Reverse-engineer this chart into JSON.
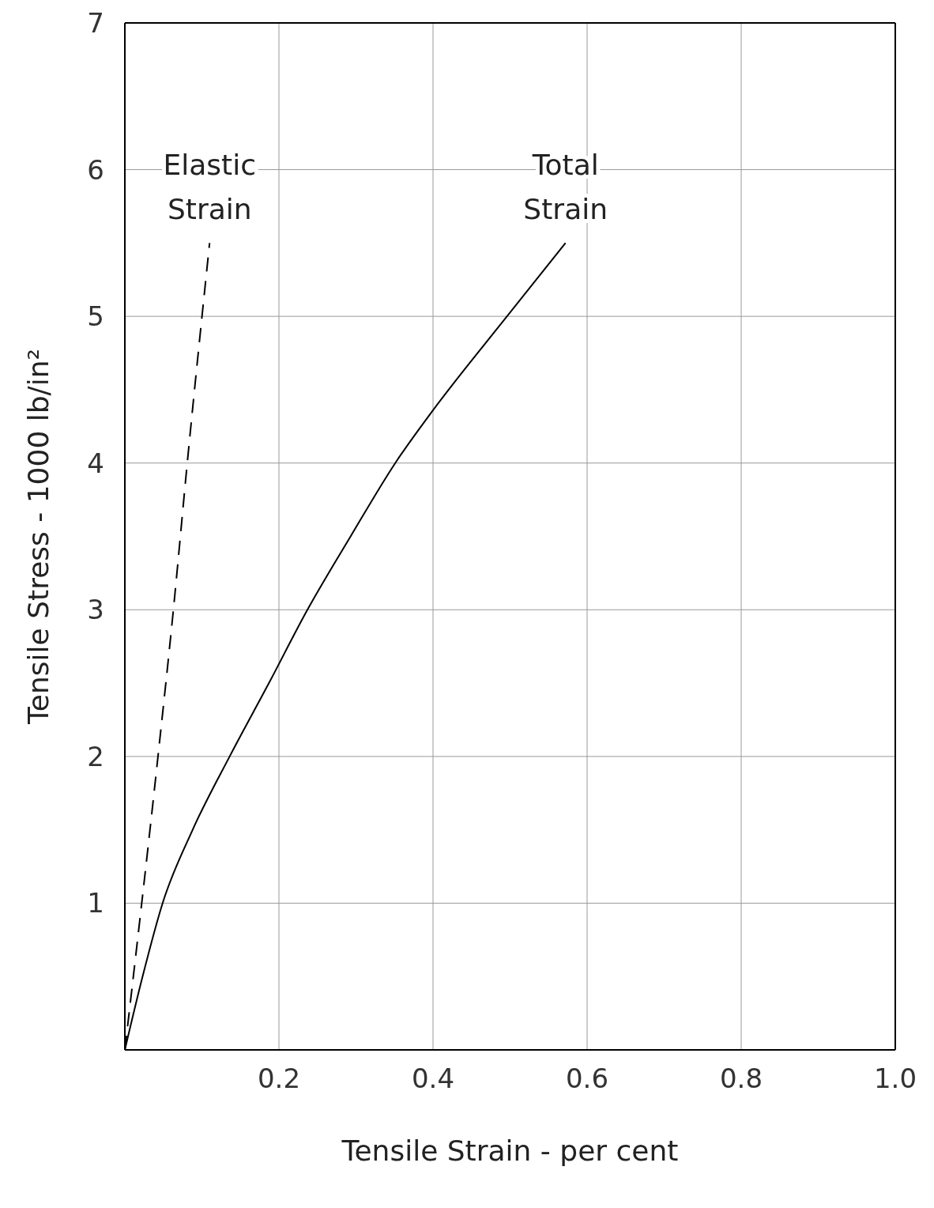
{
  "chart_data": {
    "type": "line",
    "xlabel": "Tensile Strain - per cent",
    "ylabel": "Tensile Stress - 1000 lb/in²",
    "xlim": [
      0,
      1
    ],
    "xticks": [
      {
        "value": 0,
        "label": null
      },
      0.2,
      0.4,
      0.6,
      0.8,
      {
        "value": 1,
        "label": "1.0"
      }
    ],
    "ylim": [
      0,
      7
    ],
    "yticks": [
      {
        "value": 0,
        "label": null
      },
      1,
      2,
      3,
      4,
      5,
      6,
      7
    ],
    "grid": true,
    "marker": "none",
    "series": [
      {
        "name": "Elastic Strain",
        "color": "#000000",
        "line_style": "dashed",
        "x": [
          0,
          0.043,
          0.063,
          0.081,
          0.11
        ],
        "values": [
          0,
          2,
          3,
          4,
          5.5
        ]
      },
      {
        "name": "Total Strain",
        "color": "#000000",
        "line_style": "solid",
        "x": [
          0,
          0.023,
          0.049,
          0.088,
          0.136,
          0.187,
          0.237,
          0.293,
          0.351,
          0.4,
          0.496,
          0.572
        ],
        "values": [
          0,
          0.5,
          1,
          1.5,
          2,
          2.5,
          3,
          3.5,
          4,
          4.36,
          5,
          5.5
        ]
      }
    ]
  }
}
